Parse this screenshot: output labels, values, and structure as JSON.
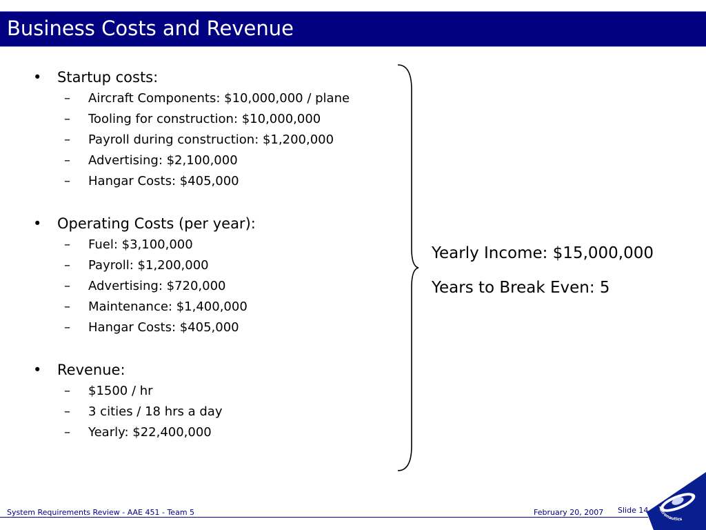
{
  "slide": {
    "title": "Business Costs and Revenue"
  },
  "sections": [
    {
      "heading": "Startup costs:",
      "items": [
        "Aircraft Components: $10,000,000 / plane",
        "Tooling for construction: $10,000,000",
        "Payroll during construction: $1,200,000",
        "Advertising: $2,100,000",
        "Hangar Costs: $405,000"
      ]
    },
    {
      "heading": "Operating Costs (per year):",
      "items": [
        "Fuel: $3,100,000",
        "Payroll: $1,200,000",
        "Advertising: $720,000",
        "Maintenance: $1,400,000",
        "Hangar Costs: $405,000"
      ]
    },
    {
      "heading": "Revenue:",
      "items": [
        "$1500 / hr",
        "3 cities / 18 hrs a day",
        "Yearly: $22,400,000"
      ]
    }
  ],
  "bullet_glyph": "•",
  "dash_glyph": "–",
  "summary": {
    "yearly_income": "Yearly Income: $15,000,000",
    "break_even": "Years to Break Even: 5"
  },
  "footer": {
    "left": "System Requirements Review - AAE 451 - Team 5",
    "date": "February 20, 2007",
    "slide_number": "Slide 14"
  },
  "logo": {
    "icon": "aeronautics-astronautics-logo-icon",
    "text_top": "Aeronautics &",
    "text_bottom": "Astronautics"
  },
  "colors": {
    "title_bar": "#000080",
    "title_text": "#ffffff",
    "footer_text": "#000080"
  }
}
